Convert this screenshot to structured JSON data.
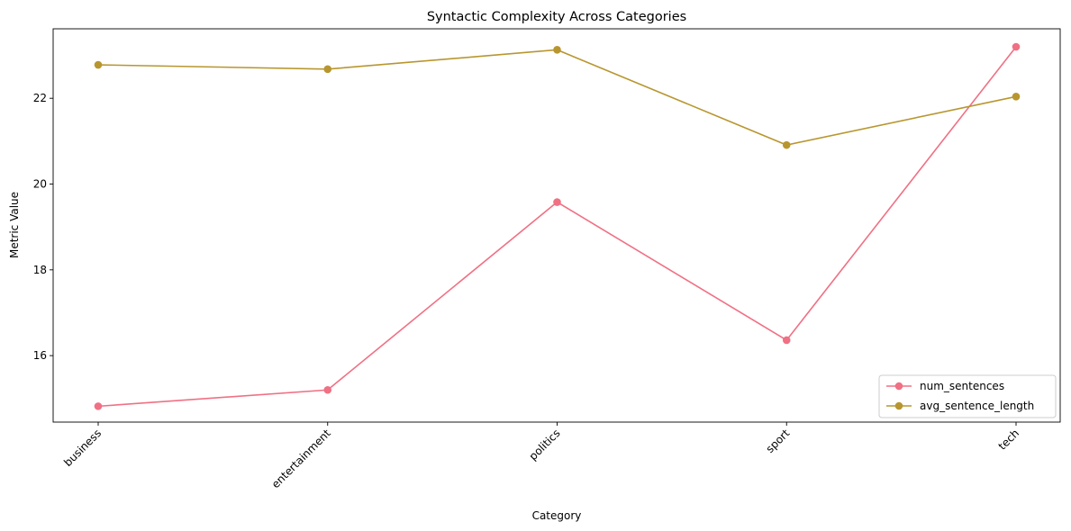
{
  "chart_data": {
    "type": "line",
    "title": "Syntactic Complexity Across Categories",
    "xlabel": "Category",
    "ylabel": "Metric Value",
    "categories": [
      "business",
      "entertainment",
      "politics",
      "sport",
      "tech"
    ],
    "yticks": [
      "16",
      "18",
      "20",
      "22"
    ],
    "ylim": [
      14.45,
      23.62
    ],
    "grid": false,
    "legend_position": "lower right",
    "series": [
      {
        "name": "num_sentences",
        "color": "#f07084",
        "values": [
          14.82,
          15.2,
          19.58,
          16.36,
          23.2
        ]
      },
      {
        "name": "avg_sentence_length",
        "color": "#b8962f",
        "values": [
          22.78,
          22.68,
          23.13,
          20.91,
          22.04
        ]
      }
    ]
  }
}
